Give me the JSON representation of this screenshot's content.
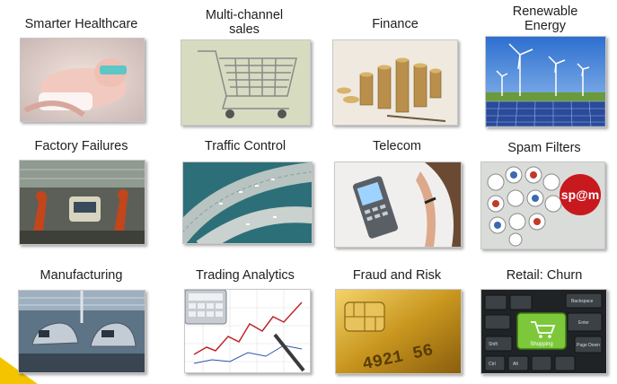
{
  "tiles": [
    {
      "label": "Smarter Healthcare",
      "icon": "newborn-baby-icon"
    },
    {
      "label": "Multi-channel\nsales",
      "icon": "shopping-cart-icon"
    },
    {
      "label": "Finance",
      "icon": "coin-stacks-icon"
    },
    {
      "label": "Renewable\nEnergy",
      "icon": "wind-turbines-solar-icon"
    },
    {
      "label": "Factory Failures",
      "icon": "factory-robots-icon"
    },
    {
      "label": "Traffic Control",
      "icon": "highway-interchange-icon"
    },
    {
      "label": "Telecom",
      "icon": "mobile-phone-icon"
    },
    {
      "label": "Spam Filters",
      "icon": "spam-logos-icon"
    },
    {
      "label": "Manufacturing",
      "icon": "car-assembly-line-icon"
    },
    {
      "label": "Trading Analytics",
      "icon": "calculator-chart-icon"
    },
    {
      "label": "Fraud and Risk",
      "icon": "credit-card-chip-icon"
    },
    {
      "label": "Retail: Churn",
      "icon": "keyboard-shopping-key-icon"
    }
  ],
  "spam_text": "sp@m",
  "card_number": "4921 56",
  "key_label": "Shopping",
  "keyboard_keys": [
    "Backspace",
    "Enter",
    "Shift",
    "Page Down",
    "Ctrl",
    "Alt"
  ]
}
